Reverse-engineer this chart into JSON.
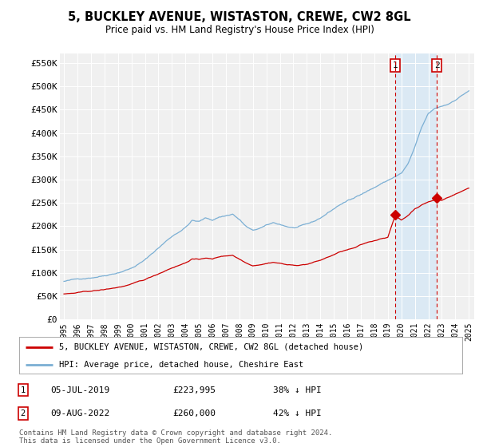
{
  "title": "5, BUCKLEY AVENUE, WISTASTON, CREWE, CW2 8GL",
  "subtitle": "Price paid vs. HM Land Registry's House Price Index (HPI)",
  "hpi_color": "#7bafd4",
  "price_color": "#cc0000",
  "background_color": "#ffffff",
  "plot_bg_color": "#f0f0f0",
  "highlight_bg_color": "#d8e8f5",
  "ylim": [
    0,
    570000
  ],
  "yticks": [
    0,
    50000,
    100000,
    150000,
    200000,
    250000,
    300000,
    350000,
    400000,
    450000,
    500000,
    550000
  ],
  "ytick_labels": [
    "£0",
    "£50K",
    "£100K",
    "£150K",
    "£200K",
    "£250K",
    "£300K",
    "£350K",
    "£400K",
    "£450K",
    "£500K",
    "£550K"
  ],
  "legend_label_red": "5, BUCKLEY AVENUE, WISTASTON, CREWE, CW2 8GL (detached house)",
  "legend_label_blue": "HPI: Average price, detached house, Cheshire East",
  "annotation1_date": "05-JUL-2019",
  "annotation1_price": "£223,995",
  "annotation1_hpi": "38% ↓ HPI",
  "annotation2_date": "09-AUG-2022",
  "annotation2_price": "£260,000",
  "annotation2_hpi": "42% ↓ HPI",
  "footer": "Contains HM Land Registry data © Crown copyright and database right 2024.\nThis data is licensed under the Open Government Licence v3.0.",
  "sale1_x": 2019.54,
  "sale1_y": 223995,
  "sale2_x": 2022.62,
  "sale2_y": 260000,
  "xtick_years": [
    1995,
    1996,
    1997,
    1998,
    1999,
    2000,
    2001,
    2002,
    2003,
    2004,
    2005,
    2006,
    2007,
    2008,
    2009,
    2010,
    2011,
    2012,
    2013,
    2014,
    2015,
    2016,
    2017,
    2018,
    2019,
    2020,
    2021,
    2022,
    2023,
    2024,
    2025
  ]
}
